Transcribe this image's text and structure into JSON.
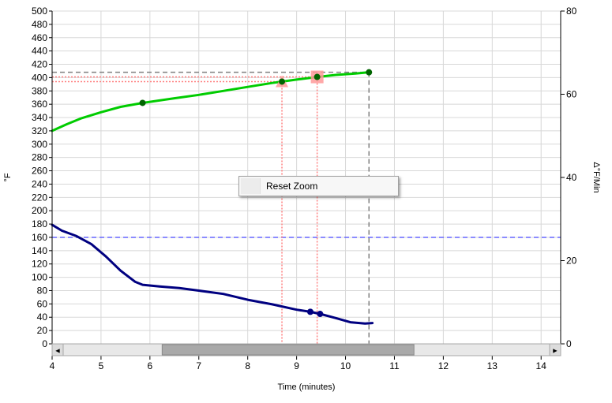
{
  "chart_data": {
    "type": "line",
    "xlabel": "Time (minutes)",
    "ylabel": "°F",
    "y2label": "Δ°F/Min",
    "xlim": [
      4,
      14.4
    ],
    "ylim": [
      0,
      500
    ],
    "y2lim": [
      0,
      80
    ],
    "x_ticks": [
      "4",
      "5",
      "6",
      "7",
      "8",
      "9",
      "10",
      "11",
      "12",
      "13",
      "14"
    ],
    "y_ticks": [
      "0",
      "20",
      "40",
      "60",
      "80",
      "100",
      "120",
      "140",
      "160",
      "180",
      "200",
      "220",
      "240",
      "260",
      "280",
      "300",
      "320",
      "340",
      "360",
      "380",
      "400",
      "420",
      "440",
      "460",
      "480",
      "500"
    ],
    "y2_ticks": [
      "0",
      "20",
      "40",
      "60",
      "80"
    ],
    "grid": true,
    "series": [
      {
        "color": "#00cc00",
        "axis": "left",
        "x": [
          4.0,
          4.3,
          4.6,
          5.0,
          5.4,
          5.85,
          6.5,
          7.0,
          7.5,
          8.0,
          8.5,
          8.7,
          9.0,
          9.42,
          9.8,
          10.2,
          10.48
        ],
        "y": [
          320,
          330,
          339,
          348,
          356,
          362,
          369,
          374,
          380,
          386,
          392,
          394,
          397,
          401,
          404,
          406,
          408
        ]
      },
      {
        "color": "#000080",
        "axis": "right",
        "x": [
          4.0,
          4.2,
          4.5,
          4.8,
          5.1,
          5.4,
          5.7,
          5.85,
          6.2,
          6.6,
          7.0,
          7.5,
          8.0,
          8.5,
          9.0,
          9.28,
          9.48,
          9.8,
          10.1,
          10.4,
          10.55
        ],
        "y": [
          28.6,
          27.2,
          25.9,
          24.0,
          21.0,
          17.6,
          14.9,
          14.2,
          13.8,
          13.4,
          12.8,
          12.0,
          10.6,
          9.5,
          8.2,
          7.7,
          7.2,
          6.2,
          5.2,
          4.9,
          5.0
        ]
      }
    ],
    "markers": [
      {
        "series": 0,
        "x": 5.85,
        "y": 362
      },
      {
        "series": 0,
        "x": 8.7,
        "y": 394
      },
      {
        "series": 0,
        "x": 9.42,
        "y": 401
      },
      {
        "series": 0,
        "x": 10.48,
        "y": 408
      },
      {
        "series": 1,
        "x": 9.28,
        "y": 7.7
      },
      {
        "series": 1,
        "x": 9.48,
        "y": 7.2
      }
    ],
    "reference_lines": [
      {
        "orientation": "horizontal",
        "y": 160,
        "color": "#6666ff",
        "style": "dashed"
      },
      {
        "orientation": "vertical",
        "x": 8.7,
        "ymax": 394,
        "color": "#ff8080",
        "style": "dotted"
      },
      {
        "orientation": "vertical",
        "x": 9.42,
        "ymax": 401,
        "color": "#ff8080",
        "style": "dotted"
      },
      {
        "orientation": "vertical",
        "x": 10.48,
        "ymax": 408,
        "color": "#808080",
        "style": "dashed"
      },
      {
        "orientation": "horizontal",
        "y": 394,
        "xmax": 8.7,
        "color": "#ff8080",
        "style": "dotted"
      },
      {
        "orientation": "horizontal",
        "y": 401,
        "xmax": 9.42,
        "color": "#ff8080",
        "style": "dotted"
      },
      {
        "orientation": "horizontal",
        "y": 408,
        "xmax": 10.48,
        "color": "#808080",
        "style": "dashed"
      }
    ],
    "highlight_markers": [
      {
        "shape": "triangle",
        "x": 8.7,
        "y": 394,
        "color": "#ff9999"
      },
      {
        "shape": "square",
        "x": 9.42,
        "y": 401,
        "color": "#ff9999"
      }
    ]
  },
  "scrollbar": {
    "left_arrow": "◄",
    "right_arrow": "►",
    "view_start": 6.25,
    "view_end": 11.4
  },
  "context_menu": {
    "items": [
      {
        "label": "Reset Zoom"
      }
    ]
  }
}
